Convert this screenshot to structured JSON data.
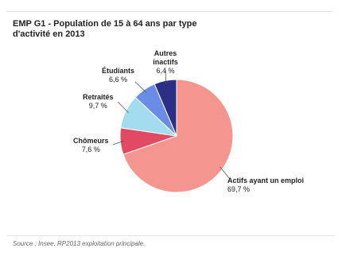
{
  "title": "EMP G1 - Population de 15 à 64 ans par type d'activité en 2013",
  "source": "Source : Insee, RP2013 exploitation principale.",
  "chart_data": {
    "type": "pie",
    "title": "EMP G1 - Population de 15 à 64 ans par type d'activité en 2013",
    "slices": [
      {
        "name": "Actifs ayant un emploi",
        "value": 69.7,
        "label": "69,7 %",
        "color": "#f4958f"
      },
      {
        "name": "Chômeurs",
        "value": 7.6,
        "label": "7,6 %",
        "color": "#e24a63"
      },
      {
        "name": "Retraités",
        "value": 9.7,
        "label": "9,7 %",
        "color": "#a4dcef"
      },
      {
        "name": "Étudiants",
        "value": 6.6,
        "label": "6,6 %",
        "color": "#6a8ce6"
      },
      {
        "name": "Autres inactifs",
        "value": 6.4,
        "label": "6,4 %",
        "color": "#2b2f86"
      }
    ]
  }
}
